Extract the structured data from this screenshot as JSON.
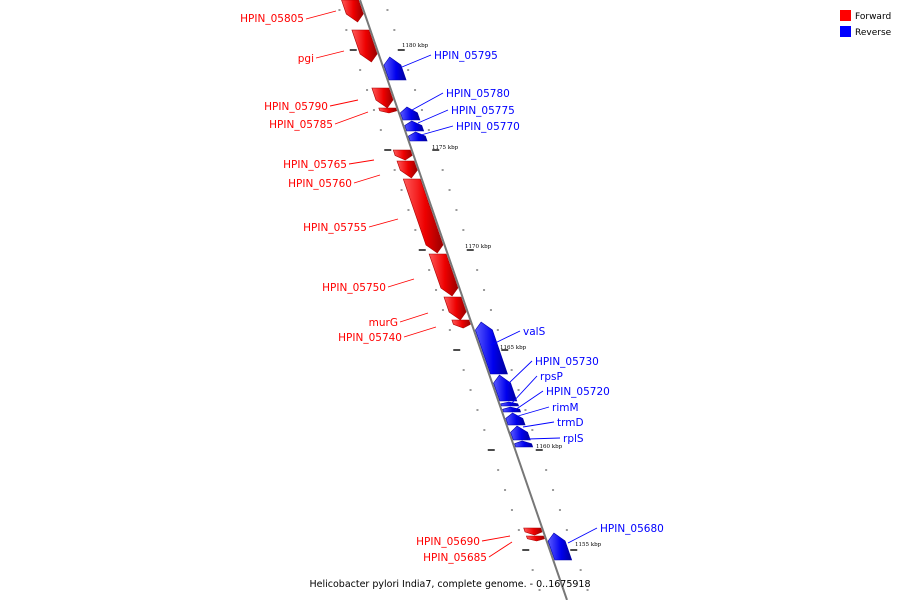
{
  "legend": {
    "forward_label": "Forward",
    "reverse_label": "Reverse",
    "forward_color": "#ff0000",
    "reverse_color": "#0000ff"
  },
  "caption": "Helicobacter pylori India7, complete genome. - 0..1675918",
  "ticks": [
    "1180 kbp",
    "1175 kbp",
    "1170 kbp",
    "1165 kbp",
    "1160 kbp",
    "1155 kbp"
  ],
  "genes_forward": [
    "HPIN_05805",
    "pgi",
    "HPIN_05790",
    "HPIN_05785",
    "HPIN_05765",
    "HPIN_05760",
    "HPIN_05755",
    "HPIN_05750",
    "murG",
    "HPIN_05740",
    "HPIN_05690",
    "HPIN_05685"
  ],
  "genes_reverse": [
    "HPIN_05795",
    "HPIN_05780",
    "HPIN_05775",
    "HPIN_05770",
    "valS",
    "HPIN_05730",
    "rpsP",
    "HPIN_05720",
    "rimM",
    "trmD",
    "rplS",
    "HPIN_05680"
  ]
}
